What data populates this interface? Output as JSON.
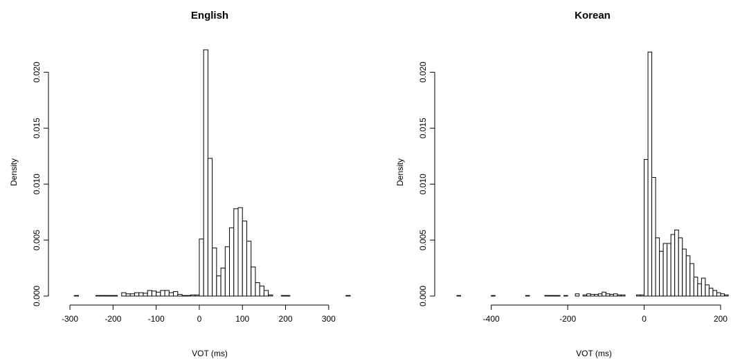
{
  "chart_data": [
    {
      "type": "bar",
      "title": "English",
      "xlabel": "VOT (ms)",
      "ylabel": "Density",
      "bin_width": 10,
      "xlim": [
        -300,
        350
      ],
      "ylim": [
        0,
        0.022
      ],
      "x_ticks": [
        -300,
        -200,
        -100,
        0,
        100,
        200,
        300
      ],
      "x_tick_labels": [
        "-300",
        "-200",
        "-100",
        "0",
        "100",
        "200",
        "300"
      ],
      "y_ticks": [
        0,
        0.005,
        0.01,
        0.015,
        0.02
      ],
      "y_tick_labels": [
        "0.000",
        "0.005",
        "0.010",
        "0.015",
        "0.020"
      ],
      "grid": false,
      "bins": [
        {
          "x0": -290,
          "x1": -280,
          "value": 5e-05
        },
        {
          "x0": -240,
          "x1": -230,
          "value": 5e-05
        },
        {
          "x0": -230,
          "x1": -220,
          "value": 5e-05
        },
        {
          "x0": -220,
          "x1": -210,
          "value": 5e-05
        },
        {
          "x0": -210,
          "x1": -200,
          "value": 5e-05
        },
        {
          "x0": -200,
          "x1": -190,
          "value": 5e-05
        },
        {
          "x0": -180,
          "x1": -170,
          "value": 0.0003
        },
        {
          "x0": -170,
          "x1": -160,
          "value": 0.0002
        },
        {
          "x0": -160,
          "x1": -150,
          "value": 0.0002
        },
        {
          "x0": -150,
          "x1": -140,
          "value": 0.0003
        },
        {
          "x0": -140,
          "x1": -130,
          "value": 0.0003
        },
        {
          "x0": -130,
          "x1": -120,
          "value": 0.00025
        },
        {
          "x0": -120,
          "x1": -110,
          "value": 0.0005
        },
        {
          "x0": -110,
          "x1": -100,
          "value": 0.00045
        },
        {
          "x0": -100,
          "x1": -90,
          "value": 0.00035
        },
        {
          "x0": -90,
          "x1": -80,
          "value": 0.0005
        },
        {
          "x0": -80,
          "x1": -70,
          "value": 0.0005
        },
        {
          "x0": -70,
          "x1": -60,
          "value": 0.0003
        },
        {
          "x0": -60,
          "x1": -50,
          "value": 0.0004
        },
        {
          "x0": -50,
          "x1": -40,
          "value": 0.00015
        },
        {
          "x0": -40,
          "x1": -30,
          "value": 5e-05
        },
        {
          "x0": -30,
          "x1": -20,
          "value": 5e-05
        },
        {
          "x0": -20,
          "x1": -10,
          "value": 0.0001
        },
        {
          "x0": -10,
          "x1": 0,
          "value": 0.0001
        },
        {
          "x0": 0,
          "x1": 10,
          "value": 0.0051
        },
        {
          "x0": 10,
          "x1": 20,
          "value": 0.022
        },
        {
          "x0": 20,
          "x1": 30,
          "value": 0.0123
        },
        {
          "x0": 30,
          "x1": 40,
          "value": 0.0043
        },
        {
          "x0": 40,
          "x1": 50,
          "value": 0.0018
        },
        {
          "x0": 50,
          "x1": 60,
          "value": 0.0025
        },
        {
          "x0": 60,
          "x1": 70,
          "value": 0.0044
        },
        {
          "x0": 70,
          "x1": 80,
          "value": 0.0061
        },
        {
          "x0": 80,
          "x1": 90,
          "value": 0.0078
        },
        {
          "x0": 90,
          "x1": 100,
          "value": 0.0079
        },
        {
          "x0": 100,
          "x1": 110,
          "value": 0.0067
        },
        {
          "x0": 110,
          "x1": 120,
          "value": 0.0049
        },
        {
          "x0": 120,
          "x1": 130,
          "value": 0.0026
        },
        {
          "x0": 130,
          "x1": 140,
          "value": 0.0012
        },
        {
          "x0": 140,
          "x1": 150,
          "value": 0.0009
        },
        {
          "x0": 150,
          "x1": 160,
          "value": 0.0005
        },
        {
          "x0": 160,
          "x1": 170,
          "value": 0.0001
        },
        {
          "x0": 190,
          "x1": 200,
          "value": 5e-05
        },
        {
          "x0": 200,
          "x1": 210,
          "value": 5e-05
        },
        {
          "x0": 340,
          "x1": 350,
          "value": 5e-05
        }
      ]
    },
    {
      "type": "bar",
      "title": "Korean",
      "xlabel": "VOT (ms)",
      "ylabel": "Density",
      "bin_width": 10,
      "xlim": [
        -490,
        220
      ],
      "ylim": [
        0,
        0.022
      ],
      "x_ticks": [
        -400,
        -200,
        0,
        200
      ],
      "x_tick_labels": [
        "-400",
        "-200",
        "0",
        "200"
      ],
      "y_ticks": [
        0,
        0.005,
        0.01,
        0.015,
        0.02
      ],
      "y_tick_labels": [
        "0.000",
        "0.005",
        "0.010",
        "0.015",
        "0.020"
      ],
      "grid": false,
      "bins": [
        {
          "x0": -490,
          "x1": -480,
          "value": 5e-05
        },
        {
          "x0": -400,
          "x1": -390,
          "value": 5e-05
        },
        {
          "x0": -310,
          "x1": -300,
          "value": 5e-05
        },
        {
          "x0": -260,
          "x1": -250,
          "value": 5e-05
        },
        {
          "x0": -250,
          "x1": -240,
          "value": 5e-05
        },
        {
          "x0": -240,
          "x1": -230,
          "value": 5e-05
        },
        {
          "x0": -230,
          "x1": -220,
          "value": 5e-05
        },
        {
          "x0": -210,
          "x1": -200,
          "value": 5e-05
        },
        {
          "x0": -180,
          "x1": -170,
          "value": 0.0002
        },
        {
          "x0": -160,
          "x1": -150,
          "value": 0.0001
        },
        {
          "x0": -150,
          "x1": -140,
          "value": 0.0002
        },
        {
          "x0": -140,
          "x1": -130,
          "value": 0.00015
        },
        {
          "x0": -130,
          "x1": -120,
          "value": 0.00015
        },
        {
          "x0": -120,
          "x1": -110,
          "value": 0.0002
        },
        {
          "x0": -110,
          "x1": -100,
          "value": 0.00035
        },
        {
          "x0": -100,
          "x1": -90,
          "value": 0.0002
        },
        {
          "x0": -90,
          "x1": -80,
          "value": 0.00015
        },
        {
          "x0": -80,
          "x1": -70,
          "value": 0.0002
        },
        {
          "x0": -70,
          "x1": -60,
          "value": 0.0001
        },
        {
          "x0": -60,
          "x1": -50,
          "value": 0.0001
        },
        {
          "x0": -20,
          "x1": -10,
          "value": 0.0001
        },
        {
          "x0": -10,
          "x1": 0,
          "value": 0.0001
        },
        {
          "x0": 0,
          "x1": 10,
          "value": 0.0122
        },
        {
          "x0": 10,
          "x1": 20,
          "value": 0.0218
        },
        {
          "x0": 20,
          "x1": 30,
          "value": 0.0106
        },
        {
          "x0": 30,
          "x1": 40,
          "value": 0.0052
        },
        {
          "x0": 40,
          "x1": 50,
          "value": 0.004
        },
        {
          "x0": 50,
          "x1": 60,
          "value": 0.0047
        },
        {
          "x0": 60,
          "x1": 70,
          "value": 0.0047
        },
        {
          "x0": 70,
          "x1": 80,
          "value": 0.0055
        },
        {
          "x0": 80,
          "x1": 90,
          "value": 0.0059
        },
        {
          "x0": 90,
          "x1": 100,
          "value": 0.0052
        },
        {
          "x0": 100,
          "x1": 110,
          "value": 0.0042
        },
        {
          "x0": 110,
          "x1": 120,
          "value": 0.0036
        },
        {
          "x0": 120,
          "x1": 130,
          "value": 0.0029
        },
        {
          "x0": 130,
          "x1": 140,
          "value": 0.0017
        },
        {
          "x0": 140,
          "x1": 150,
          "value": 0.0011
        },
        {
          "x0": 150,
          "x1": 160,
          "value": 0.0016
        },
        {
          "x0": 160,
          "x1": 170,
          "value": 0.001
        },
        {
          "x0": 170,
          "x1": 180,
          "value": 0.0007
        },
        {
          "x0": 180,
          "x1": 190,
          "value": 0.0005
        },
        {
          "x0": 190,
          "x1": 200,
          "value": 0.0003
        },
        {
          "x0": 200,
          "x1": 210,
          "value": 0.0002
        },
        {
          "x0": 210,
          "x1": 220,
          "value": 0.0001
        }
      ]
    }
  ]
}
